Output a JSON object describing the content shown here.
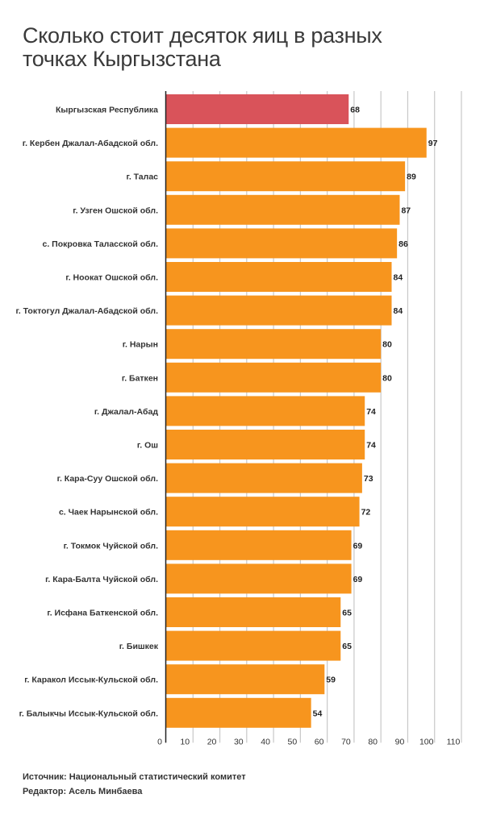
{
  "chart_data": {
    "type": "bar",
    "orientation": "horizontal",
    "title": "Сколько стоит десяток яиц в разных точках Кыргызстана",
    "title_lines": [
      "Сколько стоит десяток яиц в разных",
      "точках Кыргызстана"
    ],
    "categories": [
      "Кыргызская Республика",
      "г. Кербен Джалал-Абадской обл.",
      "г. Талас",
      "г. Узген Ошской обл.",
      "с. Покровка Таласской обл.",
      "г. Ноокат Ошской обл.",
      "г. Токтогул Джалал-Абадской обл.",
      "г. Нарын",
      "г. Баткен",
      "г. Джалал-Абад",
      "г. Ош",
      "г. Кара-Суу Ошской обл.",
      "с. Чаек Нарынской обл.",
      "г. Токмок Чуйской обл.",
      "г. Кара-Балта Чуйской обл.",
      "г. Исфана Баткенской обл.",
      "г. Бишкек",
      "г. Каракол Иссык-Кульской обл.",
      "г. Балыкчы Иссык-Кульской обл."
    ],
    "values": [
      68,
      97,
      89,
      87,
      86,
      84,
      84,
      80,
      80,
      74,
      74,
      73,
      72,
      69,
      69,
      65,
      65,
      59,
      54
    ],
    "highlight_index": 0,
    "xlim": [
      0,
      110
    ],
    "xticks": [
      "0",
      "10",
      "20",
      "30",
      "40",
      "50",
      "60",
      "70",
      "80",
      "90",
      "100",
      "110"
    ],
    "xtick_values": [
      0,
      10,
      20,
      30,
      40,
      50,
      60,
      70,
      80,
      90,
      100,
      110
    ],
    "xlabel": "",
    "ylabel": "",
    "grid": true,
    "colors": {
      "highlight": "#d9535a",
      "bar": "#f7951e",
      "grid": "#c8c8c8",
      "axis": "#222222"
    }
  },
  "footer": {
    "source": "Источник: Национальный статистический комитет",
    "editor": "Редактор: Асель Минбаева"
  }
}
